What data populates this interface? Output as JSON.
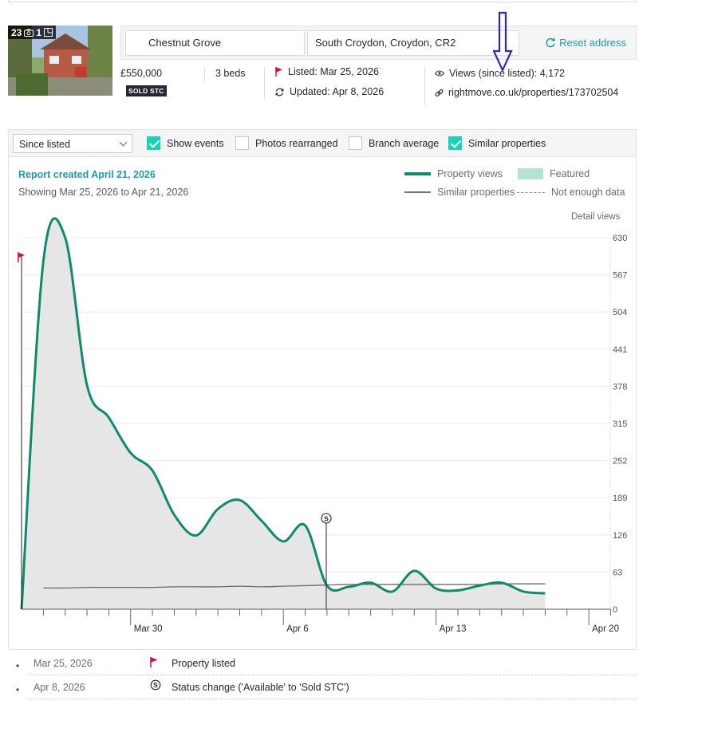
{
  "listing": {
    "photo_count": "23",
    "floorplan_count": "1",
    "street": "Chestnut Grove",
    "area": "South Croydon, Croydon, CR2",
    "reset_label": "Reset address",
    "price": "£550,000",
    "beds": "3 beds",
    "status_badge": "SOLD STC",
    "listed": "Listed: Mar 25, 2026",
    "updated": "Updated: Apr 8, 2026",
    "views": "Views (since listed): 4,172",
    "url": "rightmove.co.uk/properties/173702504"
  },
  "controls": {
    "period": "Since listed",
    "show_events": "Show events",
    "photos_rearranged": "Photos rearranged",
    "branch_average": "Branch average",
    "similar_properties": "Similar properties",
    "checked": {
      "show_events": true,
      "photos_rearranged": false,
      "branch_average": false,
      "similar_properties": true
    }
  },
  "report": {
    "title": "Report created April 21, 2026",
    "range": "Showing Mar 25, 2026 to Apr 21, 2026",
    "legend": {
      "property_views": "Property views",
      "featured": "Featured",
      "similar_properties": "Similar properties",
      "not_enough_data": "Not enough data"
    },
    "axis_title": "Detail views"
  },
  "colors": {
    "accent": "#1f9ba7",
    "views_line": "#0e8b6e",
    "checkbox": "#17d4b5",
    "flag": "#d0103a"
  },
  "chart_data": {
    "type": "area",
    "ylim": [
      0,
      630
    ],
    "yticks": [
      0,
      63,
      126,
      189,
      252,
      315,
      378,
      441,
      504,
      567,
      630
    ],
    "x_days": [
      0,
      1,
      2,
      3,
      4,
      5,
      6,
      7,
      8,
      9,
      10,
      11,
      12,
      13,
      14,
      15,
      16,
      17,
      18,
      19,
      20,
      21,
      22,
      23,
      24,
      25,
      26,
      27
    ],
    "x_tick_labels": [
      {
        "day": 5,
        "label": "Mar 30"
      },
      {
        "day": 12,
        "label": "Apr 6"
      },
      {
        "day": 19,
        "label": "Apr 13"
      },
      {
        "day": 26,
        "label": "Apr 20"
      }
    ],
    "series": [
      {
        "name": "Property views",
        "values": [
          0,
          590,
          630,
          380,
          325,
          265,
          235,
          160,
          125,
          170,
          185,
          150,
          115,
          142,
          40,
          38,
          45,
          30,
          65,
          35,
          32,
          40,
          45,
          30,
          27
        ]
      },
      {
        "name": "Similar properties",
        "values": [
          null,
          36,
          36,
          37,
          37,
          37,
          37,
          38,
          38,
          38,
          39,
          38,
          39,
          40,
          41,
          42,
          42,
          42,
          42,
          42,
          42,
          42,
          43,
          43,
          43
        ]
      }
    ],
    "views_days": [
      0,
      1,
      2,
      3,
      4,
      5,
      6,
      7,
      8,
      9,
      10,
      11,
      12,
      13,
      14,
      15,
      16,
      17,
      18,
      19,
      20,
      21,
      22,
      23,
      24
    ],
    "events": [
      {
        "date": "Mar 25, 2026",
        "day": 0,
        "type": "listed",
        "label": "Property listed"
      },
      {
        "date": "Apr 8, 2026",
        "day": 14,
        "type": "status",
        "label": "Status change ('Available' to 'Sold STC')"
      }
    ]
  }
}
